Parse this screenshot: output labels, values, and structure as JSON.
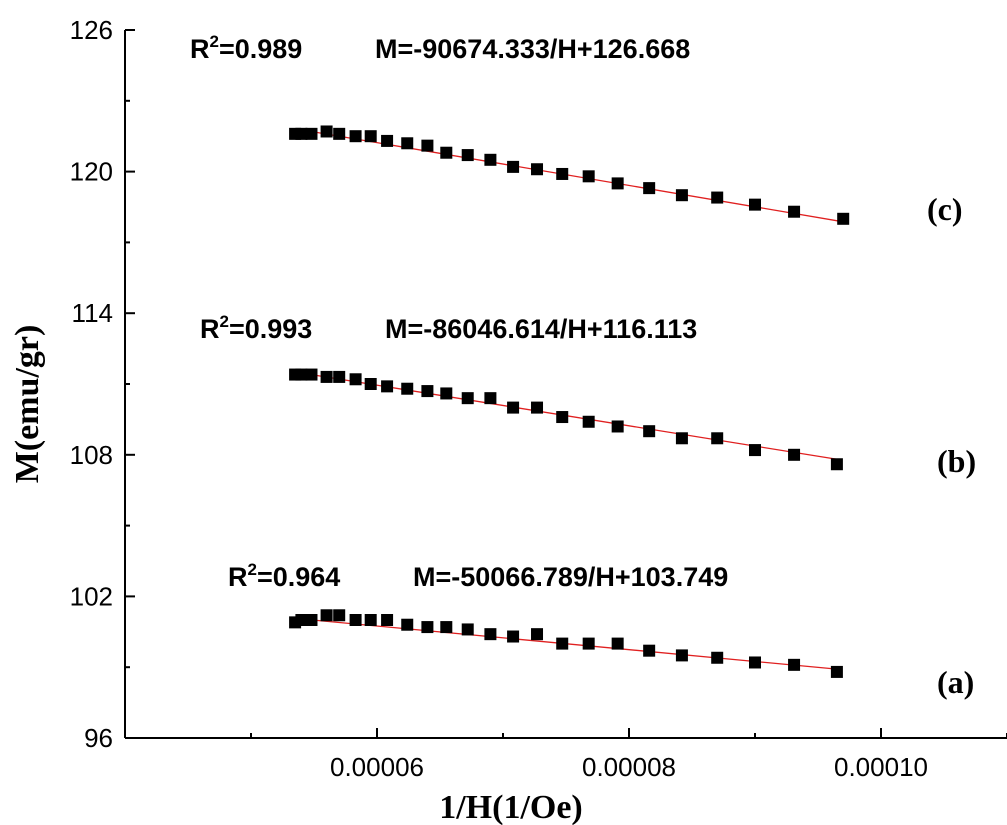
{
  "chart_data": {
    "type": "scatter",
    "title": "",
    "xlabel": "1/H(1/Oe)",
    "ylabel": "M(emu/gr)",
    "xlim": [
      4e-05,
      0.00011
    ],
    "ylim": [
      96,
      126
    ],
    "x_ticks": [
      {
        "value": 6e-05,
        "label": "0.00006"
      },
      {
        "value": 8e-05,
        "label": "0.00008"
      },
      {
        "value": 0.0001,
        "label": "0.00010"
      }
    ],
    "x_minor_ticks": [
      5e-05,
      7e-05,
      9e-05,
      0.00011
    ],
    "y_ticks": [
      {
        "value": 96,
        "label": "96"
      },
      {
        "value": 102,
        "label": "102"
      },
      {
        "value": 108,
        "label": "108"
      },
      {
        "value": 114,
        "label": "114"
      },
      {
        "value": 120,
        "label": "120"
      },
      {
        "value": 126,
        "label": "126"
      }
    ],
    "y_minor_ticks": [
      99,
      105,
      111,
      117,
      123
    ],
    "grid": false,
    "marker": "square",
    "marker_color": "#000000",
    "fit_line_color": "#e02020",
    "series": [
      {
        "tag": "(a)",
        "r2_label": "0.964",
        "equation_label": "M=-50066.789/H+103.749",
        "slope": -50066.789,
        "intercept": 103.749,
        "x": [
          5.35e-05,
          5.4e-05,
          5.48e-05,
          5.6e-05,
          5.7e-05,
          5.83e-05,
          5.95e-05,
          6.08e-05,
          6.24e-05,
          6.4e-05,
          6.55e-05,
          6.72e-05,
          6.9e-05,
          7.08e-05,
          7.27e-05,
          7.47e-05,
          7.68e-05,
          7.91e-05,
          8.16e-05,
          8.42e-05,
          8.7e-05,
          9e-05,
          9.31e-05,
          9.65e-05
        ],
        "y": [
          100.9,
          101.0,
          101.0,
          101.2,
          101.2,
          101.0,
          101.0,
          101.0,
          100.8,
          100.7,
          100.7,
          100.6,
          100.4,
          100.3,
          100.4,
          100.0,
          100.0,
          100.0,
          99.7,
          99.5,
          99.4,
          99.2,
          99.1,
          98.8
        ]
      },
      {
        "tag": "(b)",
        "r2_label": "0.993",
        "equation_label": "M=-86046.614/H+116.113",
        "slope": -86046.614,
        "intercept": 116.113,
        "x": [
          5.35e-05,
          5.4e-05,
          5.48e-05,
          5.6e-05,
          5.7e-05,
          5.83e-05,
          5.95e-05,
          6.08e-05,
          6.24e-05,
          6.4e-05,
          6.55e-05,
          6.72e-05,
          6.9e-05,
          7.08e-05,
          7.27e-05,
          7.47e-05,
          7.68e-05,
          7.91e-05,
          8.16e-05,
          8.42e-05,
          8.7e-05,
          9e-05,
          9.31e-05,
          9.65e-05
        ],
        "y": [
          111.4,
          111.4,
          111.4,
          111.3,
          111.3,
          111.2,
          111.0,
          110.9,
          110.8,
          110.7,
          110.6,
          110.4,
          110.4,
          110.0,
          110.0,
          109.6,
          109.4,
          109.2,
          109.0,
          108.7,
          108.7,
          108.2,
          108.0,
          107.6
        ]
      },
      {
        "tag": "(c)",
        "r2_label": "0.989",
        "equation_label": "M=-90674.333/H+126.668",
        "slope": -90674.333,
        "intercept": 126.668,
        "x": [
          5.35e-05,
          5.4e-05,
          5.48e-05,
          5.6e-05,
          5.7e-05,
          5.83e-05,
          5.95e-05,
          6.08e-05,
          6.24e-05,
          6.4e-05,
          6.55e-05,
          6.72e-05,
          6.9e-05,
          7.08e-05,
          7.27e-05,
          7.47e-05,
          7.68e-05,
          7.91e-05,
          8.16e-05,
          8.42e-05,
          8.7e-05,
          9e-05,
          9.31e-05,
          9.7e-05
        ],
        "y": [
          121.6,
          121.6,
          121.6,
          121.7,
          121.6,
          121.5,
          121.5,
          121.3,
          121.2,
          121.1,
          120.8,
          120.7,
          120.5,
          120.2,
          120.1,
          119.9,
          119.8,
          119.5,
          119.3,
          119.0,
          118.9,
          118.6,
          118.3,
          118.0
        ]
      }
    ]
  }
}
